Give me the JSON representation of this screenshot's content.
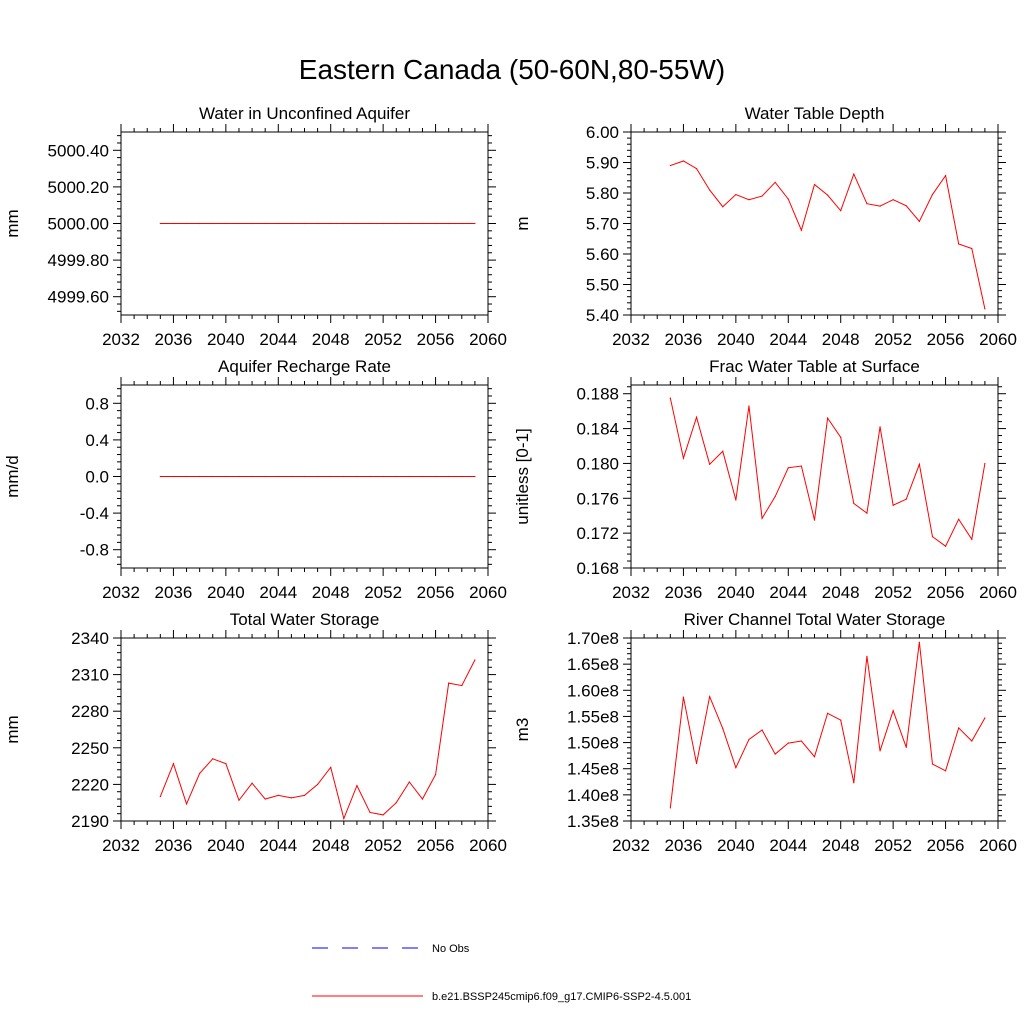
{
  "main_title": "Eastern Canada (50-60N,80-55W)",
  "colors": {
    "model_line": "#ff0000",
    "obs_line": "#0000ff",
    "axis": "#000000"
  },
  "legend": {
    "items": [
      {
        "label": "No Obs",
        "style": "dashed",
        "color": "#0000ff"
      },
      {
        "label": "b.e21.BSSP245cmip6.f09_g17.CMIP6-SSP2-4.5.001",
        "style": "solid",
        "color": "#ff0000"
      }
    ]
  },
  "chart_data": [
    {
      "type": "line",
      "title": "Water in Unconfined Aquifer",
      "ylabel": "mm",
      "xlim": [
        2032,
        2060
      ],
      "xticks": [
        "2032",
        "2036",
        "2040",
        "2044",
        "2048",
        "2052",
        "2056",
        "2060"
      ],
      "ylim": [
        4999.5,
        5000.5
      ],
      "yticks": [
        {
          "value": 4999.6,
          "label": "4999.60"
        },
        {
          "value": 4999.8,
          "label": "4999.80"
        },
        {
          "value": 5000.0,
          "label": "5000.00"
        },
        {
          "value": 5000.2,
          "label": "5000.20"
        },
        {
          "value": 5000.4,
          "label": "5000.40"
        }
      ],
      "x": [
        2035,
        2036,
        2037,
        2038,
        2039,
        2040,
        2041,
        2042,
        2043,
        2044,
        2045,
        2046,
        2047,
        2048,
        2049,
        2050,
        2051,
        2052,
        2053,
        2054,
        2055,
        2056,
        2057,
        2058,
        2059
      ],
      "series": [
        {
          "name": "b.e21.BSSP245cmip6.f09_g17.CMIP6-SSP2-4.5.001",
          "values": [
            5000,
            5000,
            5000,
            5000,
            5000,
            5000,
            5000,
            5000,
            5000,
            5000,
            5000,
            5000,
            5000,
            5000,
            5000,
            5000,
            5000,
            5000,
            5000,
            5000,
            5000,
            5000,
            5000,
            5000,
            5000
          ]
        }
      ]
    },
    {
      "type": "line",
      "title": "Water Table Depth",
      "ylabel": "m",
      "xlim": [
        2032,
        2060
      ],
      "xticks": [
        "2032",
        "2036",
        "2040",
        "2044",
        "2048",
        "2052",
        "2056",
        "2060"
      ],
      "ylim": [
        5.4,
        6.0
      ],
      "yticks": [
        {
          "value": 5.4,
          "label": "5.40"
        },
        {
          "value": 5.5,
          "label": "5.50"
        },
        {
          "value": 5.6,
          "label": "5.60"
        },
        {
          "value": 5.7,
          "label": "5.70"
        },
        {
          "value": 5.8,
          "label": "5.80"
        },
        {
          "value": 5.9,
          "label": "5.90"
        },
        {
          "value": 6.0,
          "label": "6.00"
        }
      ],
      "x": [
        2035,
        2036,
        2037,
        2038,
        2039,
        2040,
        2041,
        2042,
        2043,
        2044,
        2045,
        2046,
        2047,
        2048,
        2049,
        2050,
        2051,
        2052,
        2053,
        2054,
        2055,
        2056,
        2057,
        2058,
        2059
      ],
      "series": [
        {
          "name": "b.e21.BSSP245cmip6.f09_g17.CMIP6-SSP2-4.5.001",
          "values": [
            5.89,
            5.905,
            5.88,
            5.81,
            5.755,
            5.795,
            5.778,
            5.79,
            5.835,
            5.78,
            5.678,
            5.828,
            5.793,
            5.742,
            5.862,
            5.765,
            5.757,
            5.778,
            5.758,
            5.707,
            5.795,
            5.857,
            5.633,
            5.618,
            5.42
          ]
        }
      ]
    },
    {
      "type": "line",
      "title": "Aquifer Recharge Rate",
      "ylabel": "mm/d",
      "xlim": [
        2032,
        2060
      ],
      "xticks": [
        "2032",
        "2036",
        "2040",
        "2044",
        "2048",
        "2052",
        "2056",
        "2060"
      ],
      "ylim": [
        -1.0,
        1.0
      ],
      "yticks": [
        {
          "value": -0.8,
          "label": "-0.8"
        },
        {
          "value": -0.4,
          "label": "-0.4"
        },
        {
          "value": 0.0,
          "label": "0.0"
        },
        {
          "value": 0.4,
          "label": "0.4"
        },
        {
          "value": 0.8,
          "label": "0.8"
        }
      ],
      "x": [
        2035,
        2036,
        2037,
        2038,
        2039,
        2040,
        2041,
        2042,
        2043,
        2044,
        2045,
        2046,
        2047,
        2048,
        2049,
        2050,
        2051,
        2052,
        2053,
        2054,
        2055,
        2056,
        2057,
        2058,
        2059
      ],
      "series": [
        {
          "name": "b.e21.BSSP245cmip6.f09_g17.CMIP6-SSP2-4.5.001",
          "values": [
            0,
            0,
            0,
            0,
            0,
            0,
            0,
            0,
            0,
            0,
            0,
            0,
            0,
            0,
            0,
            0,
            0,
            0,
            0,
            0,
            0,
            0,
            0,
            0,
            0
          ]
        }
      ]
    },
    {
      "type": "line",
      "title": "Frac Water Table at Surface",
      "ylabel": "unitless [0-1]",
      "xlim": [
        2032,
        2060
      ],
      "xticks": [
        "2032",
        "2036",
        "2040",
        "2044",
        "2048",
        "2052",
        "2056",
        "2060"
      ],
      "ylim": [
        0.168,
        0.189
      ],
      "yticks": [
        {
          "value": 0.168,
          "label": "0.168"
        },
        {
          "value": 0.172,
          "label": "0.172"
        },
        {
          "value": 0.176,
          "label": "0.176"
        },
        {
          "value": 0.18,
          "label": "0.180"
        },
        {
          "value": 0.184,
          "label": "0.184"
        },
        {
          "value": 0.188,
          "label": "0.188"
        }
      ],
      "x": [
        2035,
        2036,
        2037,
        2038,
        2039,
        2040,
        2041,
        2042,
        2043,
        2044,
        2045,
        2046,
        2047,
        2048,
        2049,
        2050,
        2051,
        2052,
        2053,
        2054,
        2055,
        2056,
        2057,
        2058,
        2059
      ],
      "series": [
        {
          "name": "b.e21.BSSP245cmip6.f09_g17.CMIP6-SSP2-4.5.001",
          "values": [
            0.1875,
            0.1806,
            0.1853,
            0.1799,
            0.1814,
            0.1758,
            0.1866,
            0.1737,
            0.1762,
            0.1795,
            0.1797,
            0.1735,
            0.1852,
            0.183,
            0.1754,
            0.1743,
            0.1842,
            0.1752,
            0.1759,
            0.1799,
            0.1716,
            0.1705,
            0.1736,
            0.1713,
            0.18
          ]
        }
      ]
    },
    {
      "type": "line",
      "title": "Total Water Storage",
      "ylabel": "mm",
      "xlim": [
        2032,
        2060
      ],
      "xticks": [
        "2032",
        "2036",
        "2040",
        "2044",
        "2048",
        "2052",
        "2056",
        "2060"
      ],
      "ylim": [
        2190,
        2340
      ],
      "yticks": [
        {
          "value": 2190,
          "label": "2190"
        },
        {
          "value": 2220,
          "label": "2220"
        },
        {
          "value": 2250,
          "label": "2250"
        },
        {
          "value": 2280,
          "label": "2280"
        },
        {
          "value": 2310,
          "label": "2310"
        },
        {
          "value": 2340,
          "label": "2340"
        }
      ],
      "x": [
        2035,
        2036,
        2037,
        2038,
        2039,
        2040,
        2041,
        2042,
        2043,
        2044,
        2045,
        2046,
        2047,
        2048,
        2049,
        2050,
        2051,
        2052,
        2053,
        2054,
        2055,
        2056,
        2057,
        2058,
        2059
      ],
      "series": [
        {
          "name": "b.e21.BSSP245cmip6.f09_g17.CMIP6-SSP2-4.5.001",
          "values": [
            2210,
            2237,
            2204,
            2229,
            2241,
            2237,
            2207,
            2221,
            2208,
            2211,
            2209,
            2211,
            2220,
            2234,
            2192,
            2219,
            2197,
            2195,
            2205,
            2222,
            2208,
            2228,
            2303,
            2301,
            2322
          ]
        }
      ]
    },
    {
      "type": "line",
      "title": "River Channel Total Water Storage",
      "ylabel": "m3",
      "xlim": [
        2032,
        2060
      ],
      "xticks": [
        "2032",
        "2036",
        "2040",
        "2044",
        "2048",
        "2052",
        "2056",
        "2060"
      ],
      "ylim": [
        135000000.0,
        170000000.0
      ],
      "yticks": [
        {
          "value": 135000000.0,
          "label": "1.35e8"
        },
        {
          "value": 140000000.0,
          "label": "1.40e8"
        },
        {
          "value": 145000000.0,
          "label": "1.45e8"
        },
        {
          "value": 150000000.0,
          "label": "1.50e8"
        },
        {
          "value": 155000000.0,
          "label": "1.55e8"
        },
        {
          "value": 160000000.0,
          "label": "1.60e8"
        },
        {
          "value": 165000000.0,
          "label": "1.65e8"
        },
        {
          "value": 170000000.0,
          "label": "1.70e8"
        }
      ],
      "x": [
        2035,
        2036,
        2037,
        2038,
        2039,
        2040,
        2041,
        2042,
        2043,
        2044,
        2045,
        2046,
        2047,
        2048,
        2049,
        2050,
        2051,
        2052,
        2053,
        2054,
        2055,
        2056,
        2057,
        2058,
        2059
      ],
      "series": [
        {
          "name": "b.e21.BSSP245cmip6.f09_g17.CMIP6-SSP2-4.5.001",
          "values": [
            137500000.0,
            158700000.0,
            146000000.0,
            158800000.0,
            152700000.0,
            145200000.0,
            150600000.0,
            152400000.0,
            147800000.0,
            149900000.0,
            150300000.0,
            147300000.0,
            155600000.0,
            154300000.0,
            142300000.0,
            166500000.0,
            148400000.0,
            156100000.0,
            149100000.0,
            169200000.0,
            145900000.0,
            144600000.0,
            152800000.0,
            150300000.0,
            154700000.0
          ]
        }
      ]
    }
  ]
}
